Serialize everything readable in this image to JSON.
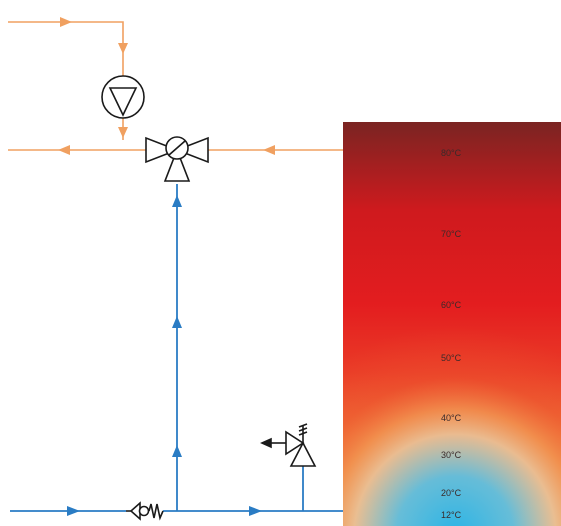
{
  "colors": {
    "hot_pipe": "#f0a060",
    "cold_pipe": "#2a7cc4",
    "symbol_stroke": "#1a1a1a",
    "tank_top": "#7a2422",
    "tank_hot": "#d9141a",
    "tank_mid": "#ee4a2c",
    "tank_warm": "#f0a060",
    "tank_cold": "#2ab4e6"
  },
  "components": {
    "pump": "pump-icon",
    "mixing_valve": "three-way-valve-icon",
    "check_valve": "check-valve-icon",
    "relief_valve": "pressure-relief-valve-icon",
    "tank": "storage-tank"
  },
  "tank": {
    "temperatures": [
      "80°C",
      "70°C",
      "60°C",
      "50°C",
      "40°C",
      "30°C",
      "20°C",
      "12°C"
    ]
  }
}
